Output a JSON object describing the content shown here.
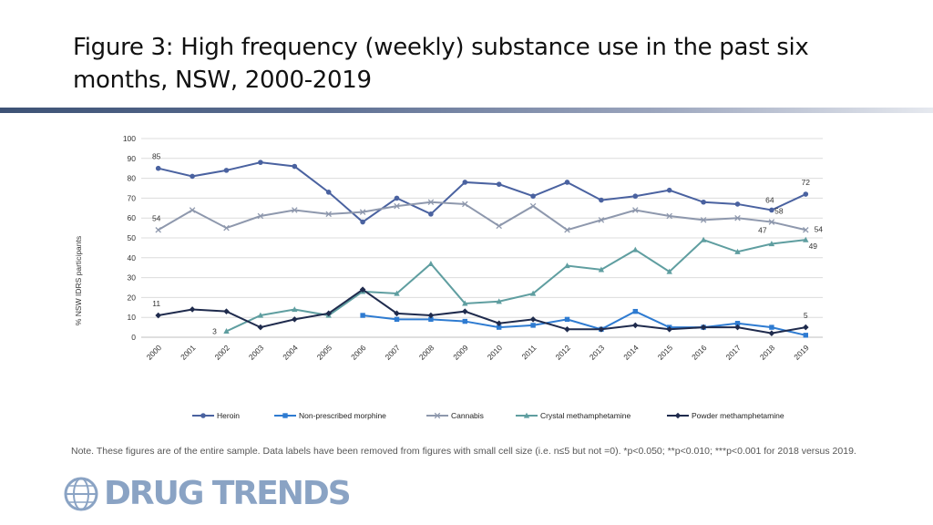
{
  "title": "Figure 3: High frequency (weekly) substance use in the past six months, NSW, 2000-2019",
  "note": "Note. These figures are of the entire sample. Data labels have been removed from figures with small cell size (i.e. n≤5 but not =0). *p<0.050; **p<0.010; ***p<0.001 for 2018 versus 2019.",
  "logo_text": "DRUG TRENDS",
  "chart_data": {
    "type": "line",
    "title": "",
    "xlabel": "",
    "ylabel": "% NSW IDRS participants",
    "ylim": [
      0,
      100
    ],
    "yticks": [
      0,
      10,
      20,
      30,
      40,
      50,
      60,
      70,
      80,
      90,
      100
    ],
    "categories": [
      "2000",
      "2001",
      "2002",
      "2003",
      "2004",
      "2005",
      "2006",
      "2007",
      "2008",
      "2009",
      "2010",
      "2011",
      "2012",
      "2013",
      "2014",
      "2015",
      "2016",
      "2017",
      "2018",
      "2019"
    ],
    "legend_position": "bottom",
    "series": [
      {
        "name": "Heroin",
        "color": "#4a62a0",
        "marker": "circle",
        "values": [
          85,
          81,
          84,
          88,
          86,
          73,
          58,
          70,
          62,
          78,
          77,
          71,
          78,
          69,
          71,
          74,
          68,
          67,
          64,
          72
        ],
        "labels": {
          "0": "85",
          "18": "64",
          "19": "72"
        }
      },
      {
        "name": "Non-prescribed morphine",
        "color": "#2e7bd1",
        "marker": "square",
        "values": [
          null,
          null,
          null,
          null,
          null,
          null,
          11,
          9,
          9,
          8,
          5,
          6,
          9,
          4,
          13,
          5,
          5,
          7,
          5,
          1
        ],
        "labels": {}
      },
      {
        "name": "Cannabis",
        "color": "#8e98ad",
        "marker": "x",
        "values": [
          54,
          64,
          55,
          61,
          64,
          62,
          63,
          66,
          68,
          67,
          56,
          66,
          54,
          59,
          64,
          61,
          59,
          60,
          58,
          54
        ],
        "labels": {
          "0": "54",
          "18": "58",
          "19": "54"
        }
      },
      {
        "name": "Crystal methamphetamine",
        "color": "#5f9ea0",
        "marker": "triangle",
        "values": [
          null,
          null,
          3,
          11,
          14,
          11,
          23,
          22,
          37,
          17,
          18,
          22,
          36,
          34,
          44,
          33,
          49,
          43,
          47,
          49
        ],
        "labels": {
          "2": "3",
          "18": "47",
          "19": "49"
        }
      },
      {
        "name": "Powder methamphetamine",
        "color": "#1f2b4d",
        "marker": "diamond",
        "values": [
          11,
          14,
          13,
          5,
          9,
          12,
          24,
          12,
          11,
          13,
          7,
          9,
          4,
          4,
          6,
          4,
          5,
          5,
          2,
          5
        ],
        "labels": {
          "0": "11",
          "19": "5"
        }
      }
    ]
  }
}
